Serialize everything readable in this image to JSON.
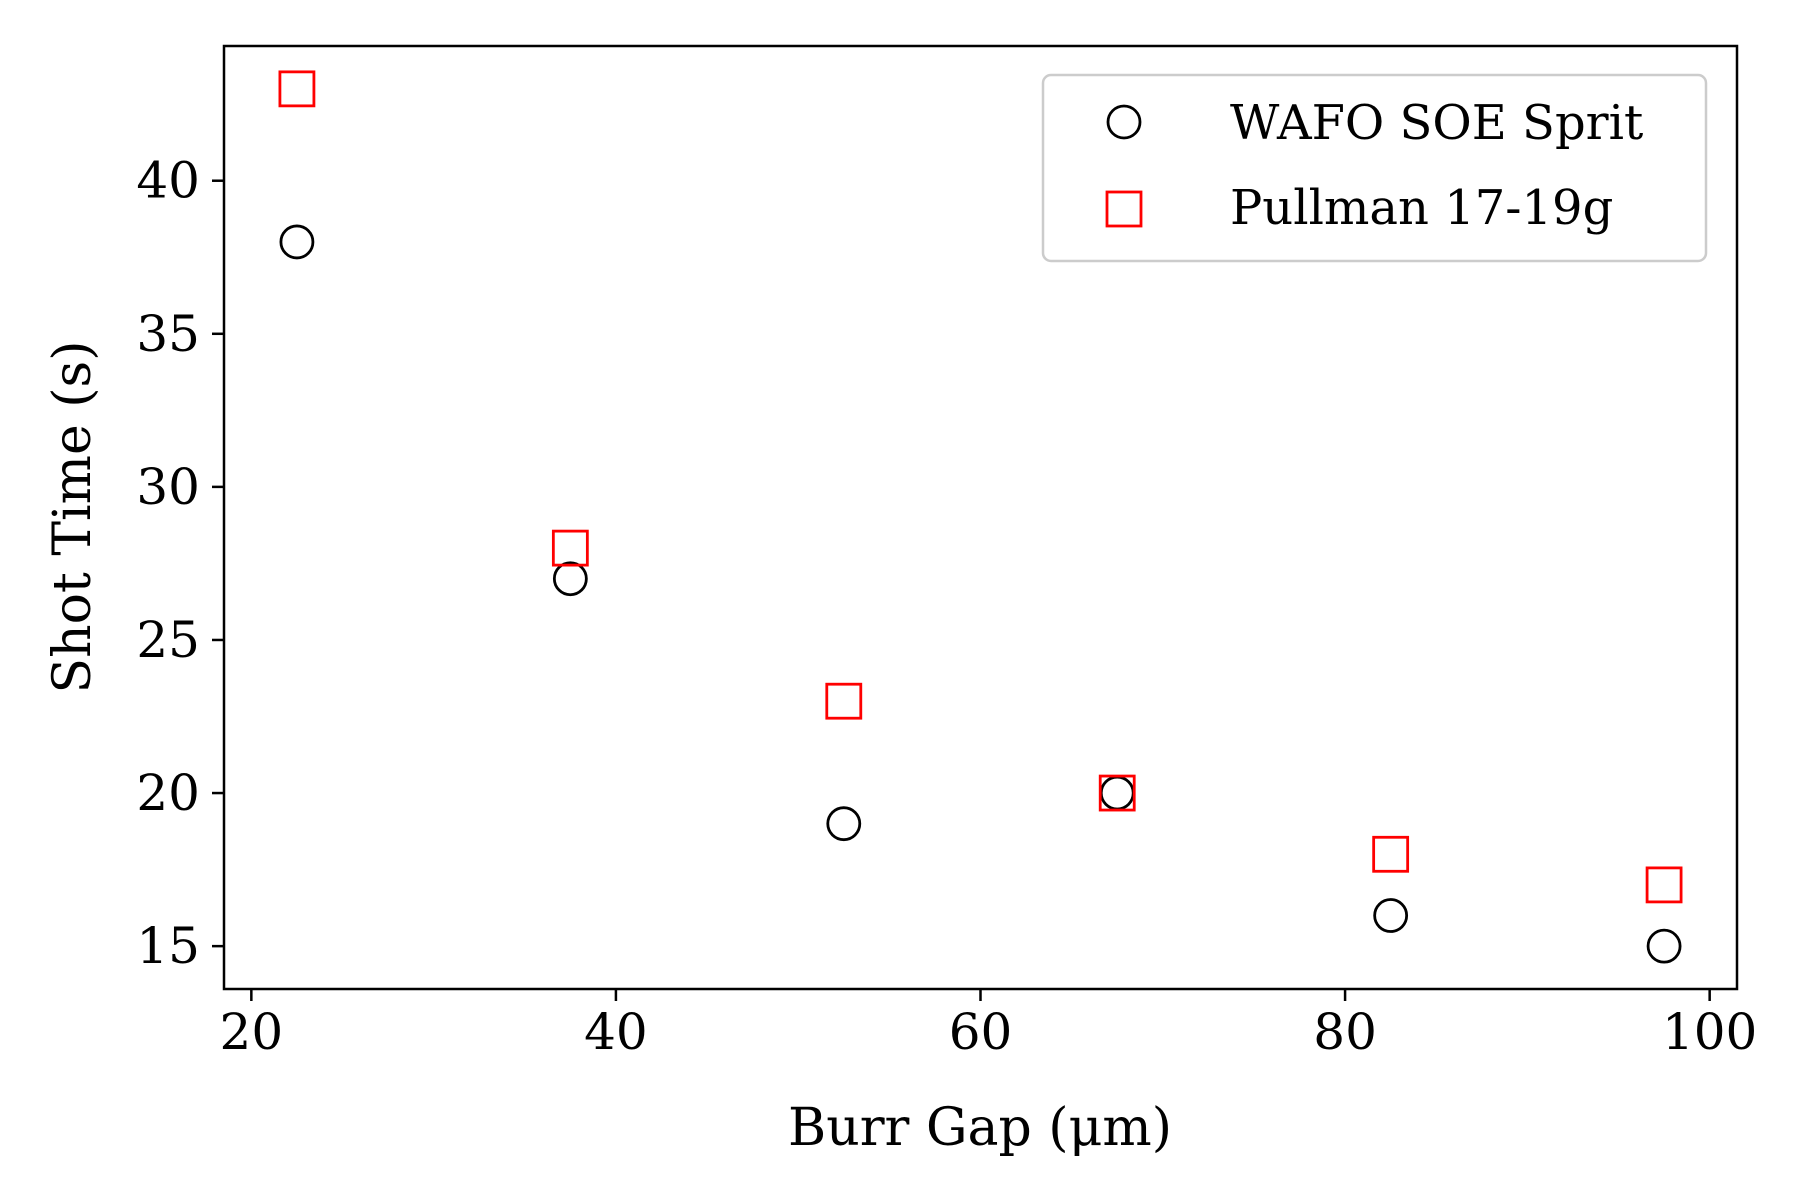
{
  "chart_data": {
    "type": "scatter",
    "title": "",
    "xlabel": "Burr Gap (μm)",
    "ylabel": "Shot Time (s)",
    "xlim": [
      18.5,
      101.5
    ],
    "ylim": [
      13.6,
      44.4
    ],
    "xticks": [
      "20",
      "40",
      "60",
      "80",
      "100"
    ],
    "yticks": [
      "15",
      "20",
      "25",
      "30",
      "35",
      "40"
    ],
    "grid": false,
    "legend_position": "top-right",
    "series": [
      {
        "name": "WAFO SOE Sprit",
        "marker": "circle",
        "color": "#000000",
        "x": [
          22.5,
          37.5,
          52.5,
          67.5,
          82.5,
          97.5
        ],
        "y": [
          38,
          27,
          19,
          20,
          16,
          15
        ]
      },
      {
        "name": "Pullman 17-19g",
        "marker": "square",
        "color": "#ff0000",
        "x": [
          22.5,
          37.5,
          52.5,
          67.5,
          82.5,
          97.5
        ],
        "y": [
          43,
          28,
          23,
          20,
          18,
          17
        ]
      }
    ]
  }
}
